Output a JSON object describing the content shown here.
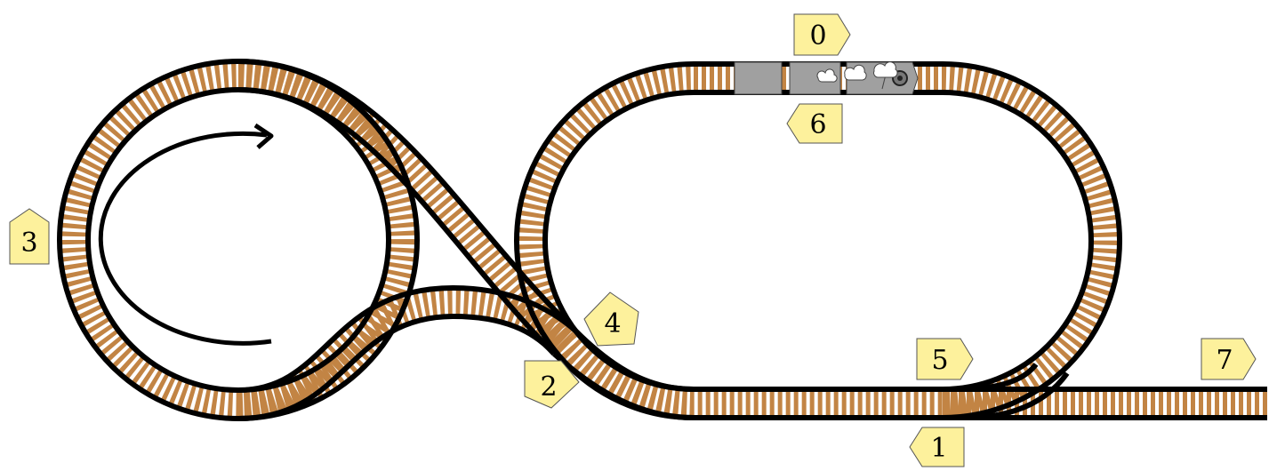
{
  "diagram": {
    "type": "track-layout",
    "colors": {
      "ties": "#c28444",
      "rails": "#000000",
      "marker_fill": "#fdf19c",
      "train": "#a0a0a0"
    },
    "markers": [
      {
        "id": "m0",
        "label": "0"
      },
      {
        "id": "m1",
        "label": "1"
      },
      {
        "id": "m2",
        "label": "2"
      },
      {
        "id": "m3",
        "label": "3"
      },
      {
        "id": "m4",
        "label": "4"
      },
      {
        "id": "m5",
        "label": "5"
      },
      {
        "id": "m6",
        "label": "6"
      },
      {
        "id": "m7",
        "label": "7"
      }
    ],
    "direction_arrow": "clockwise",
    "train": {
      "cars": 3,
      "locomotive": "steam"
    }
  }
}
